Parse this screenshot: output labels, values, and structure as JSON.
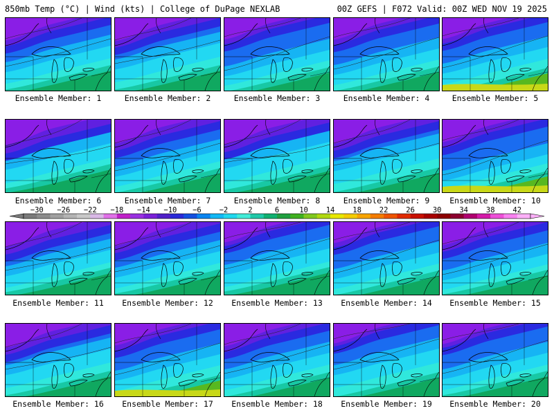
{
  "header": {
    "left_title": "850mb Temp (°C) | Wind (kts) | College of DuPage NEXLAB",
    "right_title": "00Z GEFS | F072 Valid: 00Z WED NOV 19 2025"
  },
  "panels": [
    {
      "label": "Ensemble Member: 1"
    },
    {
      "label": "Ensemble Member: 2"
    },
    {
      "label": "Ensemble Member: 3"
    },
    {
      "label": "Ensemble Member: 4"
    },
    {
      "label": "Ensemble Member: 5"
    },
    {
      "label": "Ensemble Member: 6"
    },
    {
      "label": "Ensemble Member: 7"
    },
    {
      "label": "Ensemble Member: 8"
    },
    {
      "label": "Ensemble Member: 9"
    },
    {
      "label": "Ensemble Member: 10"
    },
    {
      "label": "Ensemble Member: 11"
    },
    {
      "label": "Ensemble Member: 12"
    },
    {
      "label": "Ensemble Member: 13"
    },
    {
      "label": "Ensemble Member: 14"
    },
    {
      "label": "Ensemble Member: 15"
    },
    {
      "label": "Ensemble Member: 16"
    },
    {
      "label": "Ensemble Member: 17"
    },
    {
      "label": "Ensemble Member: 18"
    },
    {
      "label": "Ensemble Member: 19"
    },
    {
      "label": "Ensemble Member: 20"
    }
  ],
  "colorbar": {
    "tick_labels": [
      "−30",
      "−26",
      "−22",
      "−18",
      "−14",
      "−10",
      "−6",
      "−2",
      "2",
      "6",
      "10",
      "14",
      "18",
      "22",
      "26",
      "30",
      "34",
      "38",
      "42"
    ],
    "colors": [
      "#7a7a7a",
      "#8c8c8c",
      "#a0a0a0",
      "#b4b4b4",
      "#c8c8c8",
      "#d9b8e6",
      "#e070e8",
      "#c020c8",
      "#9930e0",
      "#7a20d8",
      "#5020c8",
      "#2a2ad8",
      "#1450e0",
      "#0a84f0",
      "#12b8f5",
      "#20d8ef",
      "#42ecd8",
      "#20c8a8",
      "#10b070",
      "#20a040",
      "#40b020",
      "#80c81e",
      "#b0d810",
      "#e8e800",
      "#f4cc00",
      "#f8a400",
      "#f47c00",
      "#ee5400",
      "#e02a00",
      "#c81000",
      "#a80000",
      "#8c0000",
      "#8c0030",
      "#b00070",
      "#d41aa8",
      "#ee50d8",
      "#f880f0",
      "#fcb0f8"
    ]
  }
}
